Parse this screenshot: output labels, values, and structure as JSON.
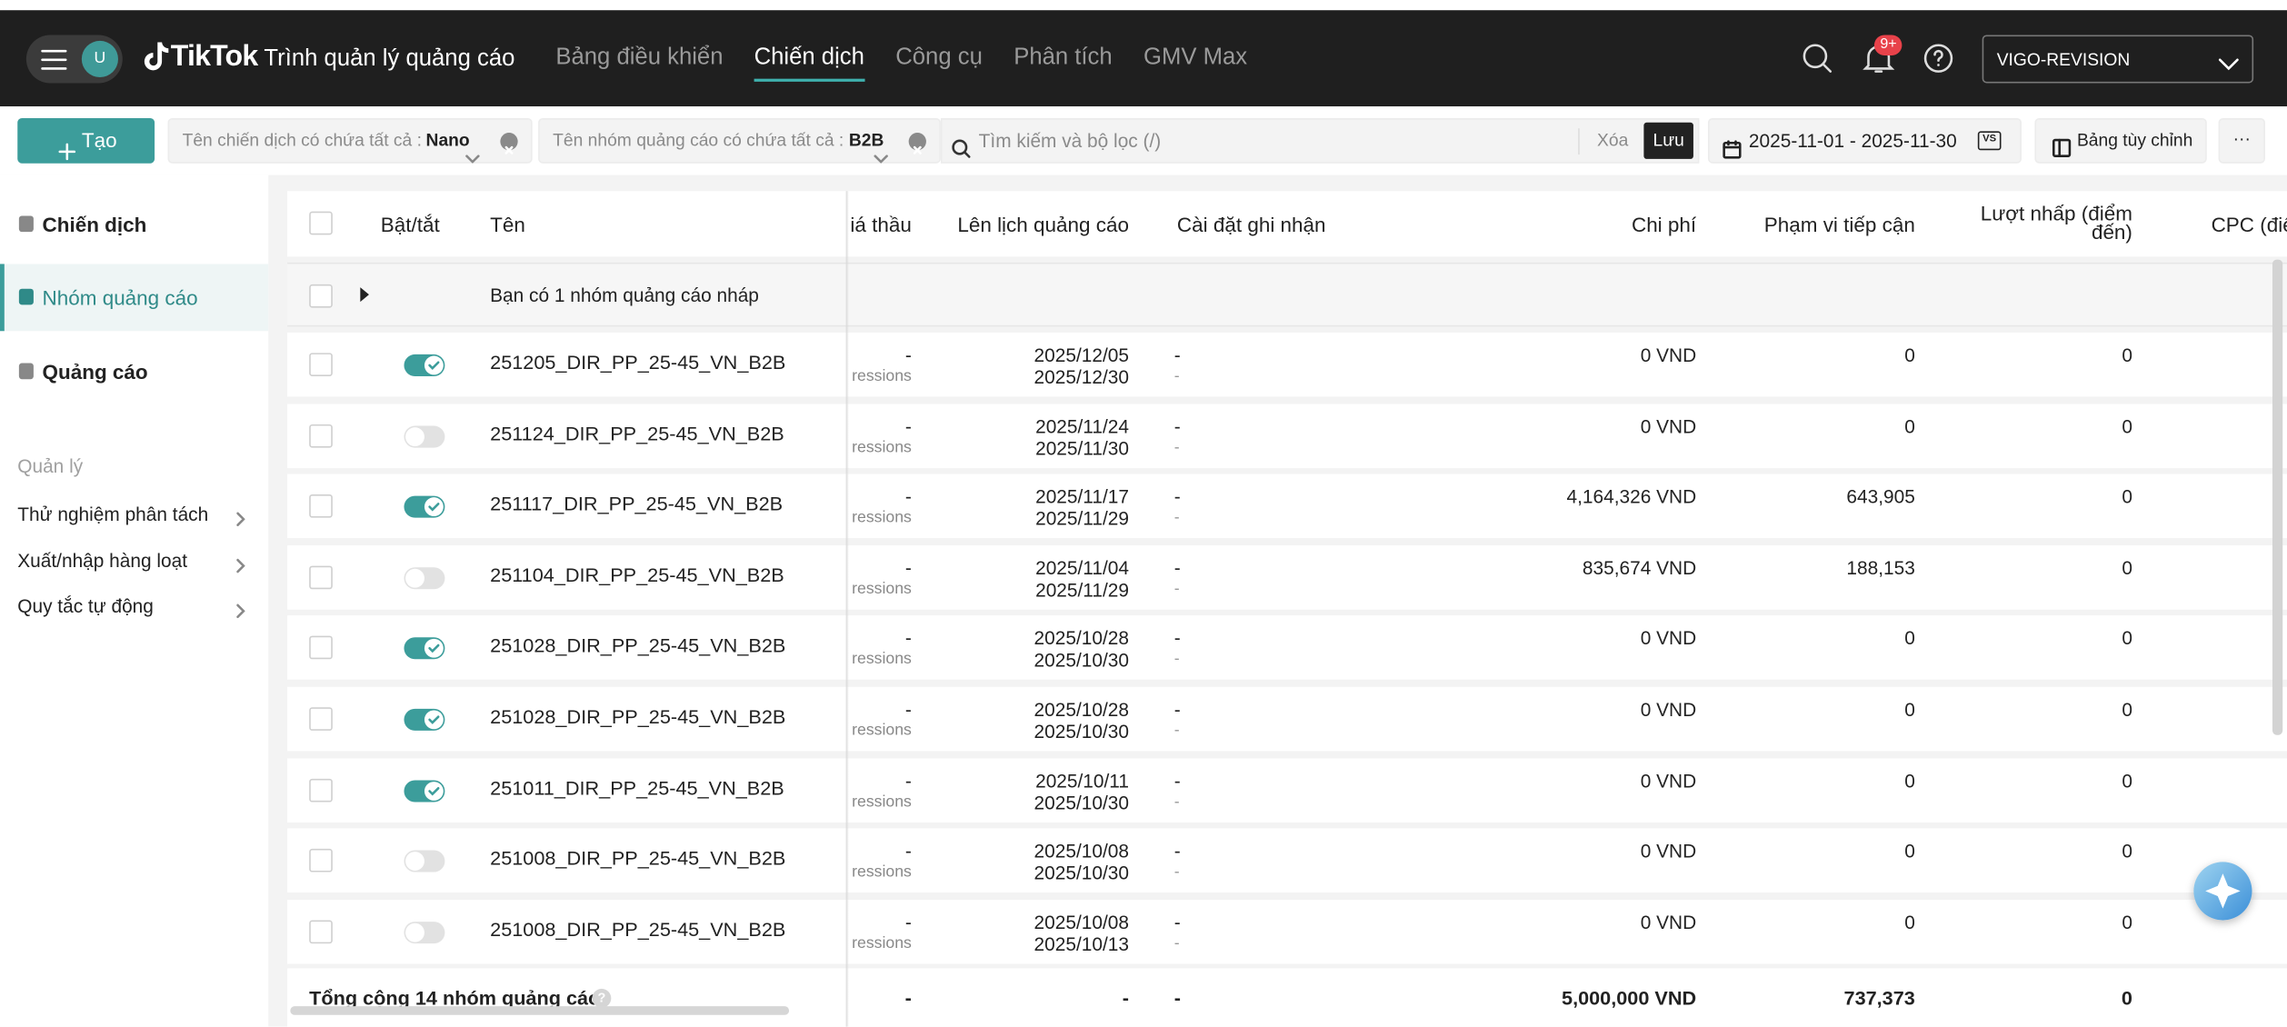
{
  "header": {
    "logo": "TikTok",
    "product": "Trình quản lý quảng cáo",
    "avatar": "U",
    "nav": [
      "Bảng điều khiển",
      "Chiến dịch",
      "Công cụ",
      "Phân tích",
      "GMV Max"
    ],
    "nav_active": 1,
    "badge": "9+",
    "account": "VIGO-REVISION"
  },
  "toolbar": {
    "create": "Tạo",
    "filters": [
      {
        "label": "Tên chiến dịch có chứa tất cả :",
        "value": "Nano"
      },
      {
        "label": "Tên nhóm quảng cáo có chứa tất cả :",
        "value": "B2B"
      }
    ],
    "search": "Tìm kiếm và bộ lọc (/)",
    "clear": "Xóa",
    "save": "Lưu",
    "date": "2025-11-01 - 2025-11-30",
    "vs": "VS",
    "custom": "Bảng tùy chỉnh",
    "more": "···"
  },
  "sidebar": {
    "levels": [
      "Chiến dịch",
      "Nhóm quảng cáo",
      "Quảng cáo"
    ],
    "active": 1,
    "section": "Quản lý",
    "items": [
      "Thử nghiệm phân tách",
      "Xuất/nhập hàng loạt",
      "Quy tắc tự động"
    ]
  },
  "table": {
    "columns": [
      "Bật/tắt",
      "Tên",
      "iá thầu",
      "Lên lịch quảng cáo",
      "Cài đặt ghi nhận",
      "Chi phí",
      "Phạm vi tiếp cận",
      "Lượt nhấp (điểm đến)",
      "CPC (điể"
    ],
    "draft": "Bạn có 1 nhóm quảng cáo nháp",
    "rows": [
      {
        "on": true,
        "name": "251205_DIR_PP_25-45_VN_B2B",
        "bid": "-",
        "bid_note": "ressions",
        "start": "2025/12/05",
        "end": "2025/12/30",
        "attribution": "-",
        "attribution_note": "-",
        "cost": "0 VND",
        "reach": "0",
        "clicks": "0"
      },
      {
        "on": false,
        "name": "251124_DIR_PP_25-45_VN_B2B",
        "bid": "-",
        "bid_note": "ressions",
        "start": "2025/11/24",
        "end": "2025/11/30",
        "attribution": "-",
        "attribution_note": "-",
        "cost": "0 VND",
        "reach": "0",
        "clicks": "0"
      },
      {
        "on": true,
        "name": "251117_DIR_PP_25-45_VN_B2B",
        "bid": "-",
        "bid_note": "ressions",
        "start": "2025/11/17",
        "end": "2025/11/29",
        "attribution": "-",
        "attribution_note": "-",
        "cost": "4,164,326 VND",
        "reach": "643,905",
        "clicks": "0"
      },
      {
        "on": false,
        "name": "251104_DIR_PP_25-45_VN_B2B",
        "bid": "-",
        "bid_note": "ressions",
        "start": "2025/11/04",
        "end": "2025/11/29",
        "attribution": "-",
        "attribution_note": "-",
        "cost": "835,674 VND",
        "reach": "188,153",
        "clicks": "0"
      },
      {
        "on": true,
        "name": "251028_DIR_PP_25-45_VN_B2B",
        "bid": "-",
        "bid_note": "ressions",
        "start": "2025/10/28",
        "end": "2025/10/30",
        "attribution": "-",
        "attribution_note": "-",
        "cost": "0 VND",
        "reach": "0",
        "clicks": "0"
      },
      {
        "on": true,
        "name": "251028_DIR_PP_25-45_VN_B2B",
        "bid": "-",
        "bid_note": "ressions",
        "start": "2025/10/28",
        "end": "2025/10/30",
        "attribution": "-",
        "attribution_note": "-",
        "cost": "0 VND",
        "reach": "0",
        "clicks": "0"
      },
      {
        "on": true,
        "name": "251011_DIR_PP_25-45_VN_B2B",
        "bid": "-",
        "bid_note": "ressions",
        "start": "2025/10/11",
        "end": "2025/10/30",
        "attribution": "-",
        "attribution_note": "-",
        "cost": "0 VND",
        "reach": "0",
        "clicks": "0"
      },
      {
        "on": false,
        "name": "251008_DIR_PP_25-45_VN_B2B",
        "bid": "-",
        "bid_note": "ressions",
        "start": "2025/10/08",
        "end": "2025/10/30",
        "attribution": "-",
        "attribution_note": "-",
        "cost": "0 VND",
        "reach": "0",
        "clicks": "0"
      },
      {
        "on": false,
        "name": "251008_DIR_PP_25-45_VN_B2B",
        "bid": "-",
        "bid_note": "ressions",
        "start": "2025/10/08",
        "end": "2025/10/13",
        "attribution": "-",
        "attribution_note": "-",
        "cost": "0 VND",
        "reach": "0",
        "clicks": "0"
      }
    ],
    "total": {
      "label": "Tổng cộng 14 nhóm quảng cáo",
      "bid": "-",
      "schedule": "-",
      "attribution": "-",
      "cost": "5,000,000 VND",
      "reach": "737,373",
      "clicks": "0"
    }
  }
}
